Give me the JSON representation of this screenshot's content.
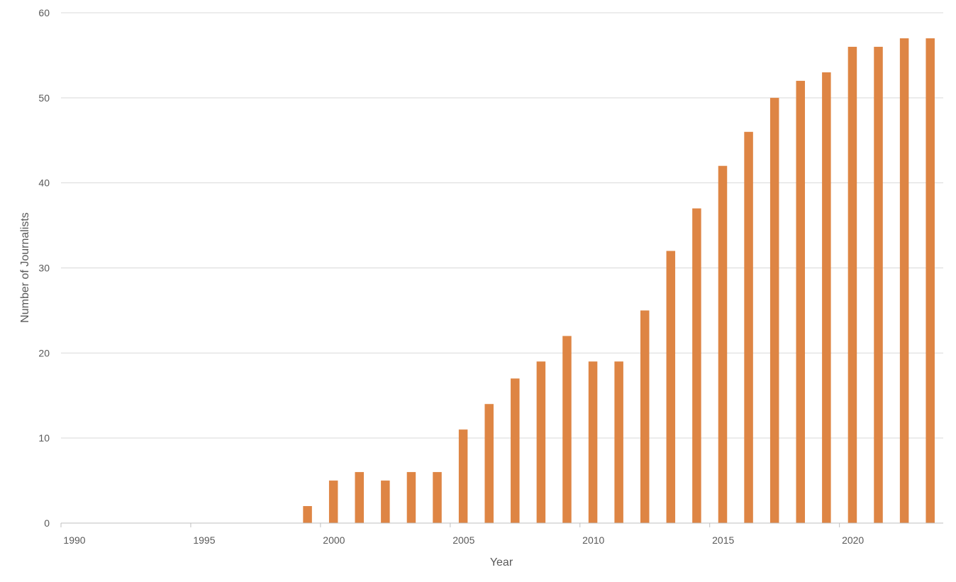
{
  "chart_data": {
    "type": "bar",
    "title": "",
    "xlabel": "Year",
    "ylabel": "Number of Journalists",
    "x_range": [
      1990,
      2023
    ],
    "xticks": [
      1990,
      1995,
      2000,
      2005,
      2010,
      2015,
      2020
    ],
    "ylim": [
      0,
      60
    ],
    "yticks": [
      0,
      10,
      20,
      30,
      40,
      50,
      60
    ],
    "grid": true,
    "legend": "none",
    "bar_color": "#DE8544",
    "years": [
      1999,
      2000,
      2001,
      2002,
      2003,
      2004,
      2005,
      2006,
      2007,
      2008,
      2009,
      2010,
      2011,
      2012,
      2013,
      2014,
      2015,
      2016,
      2017,
      2018,
      2019,
      2020,
      2021,
      2022,
      2023
    ],
    "values": [
      2,
      5,
      6,
      5,
      6,
      6,
      11,
      14,
      17,
      19,
      22,
      19,
      19,
      25,
      32,
      37,
      42,
      46,
      50,
      52,
      53,
      56,
      56,
      57,
      57
    ]
  }
}
